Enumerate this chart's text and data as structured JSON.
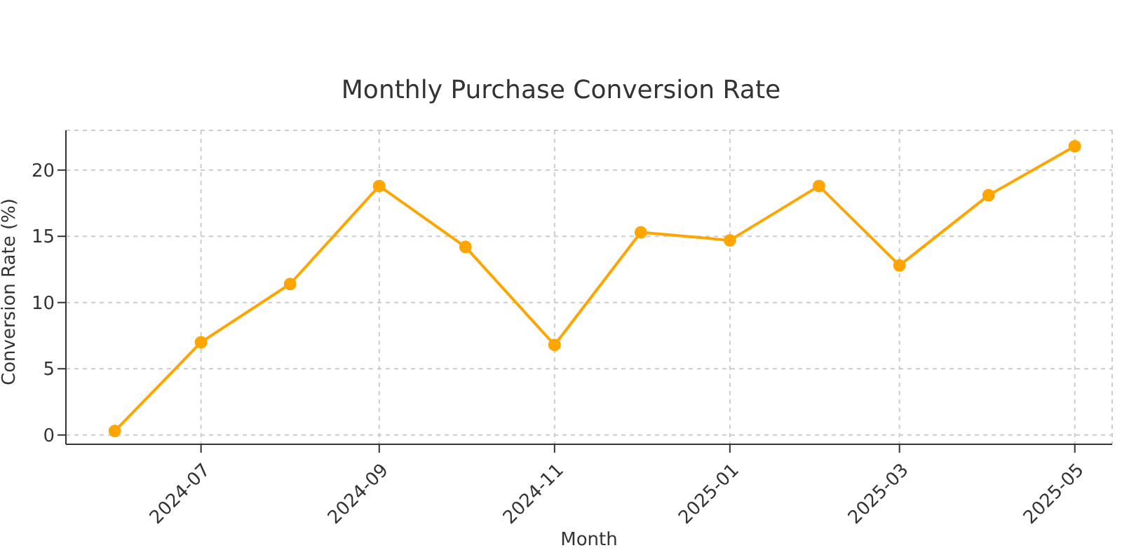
{
  "chart_data": {
    "type": "line",
    "title": "Monthly Purchase Conversion Rate",
    "xlabel": "Month",
    "ylabel": "Conversion Rate (%)",
    "x": [
      "2024-06",
      "2024-07",
      "2024-08",
      "2024-09",
      "2024-10",
      "2024-11",
      "2024-12",
      "2025-01",
      "2025-02",
      "2025-03",
      "2025-04",
      "2025-05"
    ],
    "series": [
      {
        "color": "#ffa500",
        "values": [
          0.3,
          7.0,
          11.4,
          18.8,
          14.2,
          6.8,
          15.3,
          14.7,
          18.8,
          12.8,
          18.1,
          21.8
        ]
      }
    ],
    "xlim": [
      "2024-05-15",
      "2025-05-14"
    ],
    "xticks": [
      "2024-07",
      "2024-09",
      "2024-11",
      "2025-01",
      "2025-03",
      "2025-05"
    ],
    "ylim": [
      -0.7,
      23
    ],
    "yticks": [
      0,
      5,
      10,
      15,
      20
    ],
    "grid": true,
    "marker": "circle",
    "line_style": "solid",
    "legend": false
  }
}
